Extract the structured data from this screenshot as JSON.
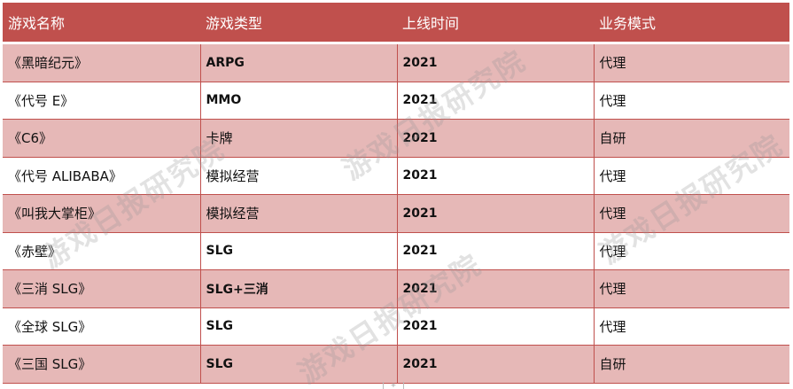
{
  "headers": [
    "游戏名称",
    "游戏类型",
    "上线时间",
    "业务模式"
  ],
  "rows": [
    [
      "《黑暗纪元》",
      "ARPG",
      "2021",
      "代理"
    ],
    [
      "《代号 E》",
      "MMO",
      "2021",
      "代理"
    ],
    [
      "《C6》",
      "卡牌",
      "2021",
      "自研"
    ],
    [
      "《代号 ALIBABA》",
      "模拟经营",
      "2021",
      "代理"
    ],
    [
      "《叫我大掌柜》",
      "模拟经营",
      "2021",
      "代理"
    ],
    [
      "《赤壁》",
      "SLG",
      "2021",
      "代理"
    ],
    [
      "《三消 SLG》",
      "SLG+三消",
      "2021",
      "代理"
    ],
    [
      "《全球 SLG》",
      "SLG",
      "2021",
      "代理"
    ],
    [
      "《三国 SLG》",
      "SLG",
      "2021",
      "自研"
    ]
  ],
  "watermark": "游戏日报研究院",
  "bottom_mark": "+",
  "colors": {
    "header_bg": "#c0504d",
    "band_bg": "#e6b8b7",
    "text": "#111111"
  }
}
